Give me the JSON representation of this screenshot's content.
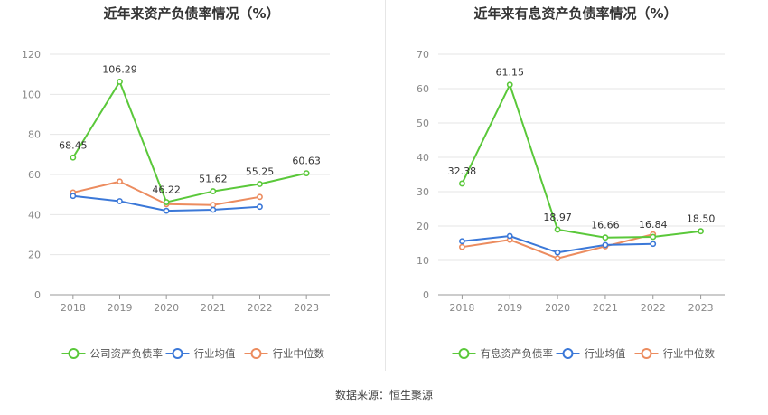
{
  "source_label": "数据来源：恒生聚源",
  "colors": {
    "company": "#5ac83a",
    "avg": "#3b78d8",
    "median": "#ec8c5f",
    "axis": "#666666",
    "grid": "#e6e6e6",
    "label": "#333333"
  },
  "chart_data": [
    {
      "type": "line",
      "title": "近年来资产负债率情况（%）",
      "categories": [
        "2018",
        "2019",
        "2020",
        "2021",
        "2022",
        "2023"
      ],
      "ylim": [
        0,
        120
      ],
      "yticks": [
        0,
        20,
        40,
        60,
        80,
        100,
        120
      ],
      "grid": true,
      "legend_position": "bottom",
      "series": [
        {
          "name": "公司资产负债率",
          "role": "company",
          "values": [
            68.45,
            106.29,
            46.22,
            51.62,
            55.25,
            60.63
          ],
          "labels": [
            "68.45",
            "106.29",
            "46.22",
            "51.62",
            "55.25",
            "60.63"
          ]
        },
        {
          "name": "行业均值",
          "role": "avg",
          "values": [
            49.3,
            46.7,
            41.9,
            42.4,
            43.9,
            null
          ]
        },
        {
          "name": "行业中位数",
          "role": "median",
          "values": [
            51.0,
            56.5,
            45.2,
            44.8,
            48.8,
            null
          ]
        }
      ]
    },
    {
      "type": "line",
      "title": "近年来有息资产负债率情况（%）",
      "categories": [
        "2018",
        "2019",
        "2020",
        "2021",
        "2022",
        "2023"
      ],
      "ylim": [
        0,
        70
      ],
      "yticks": [
        0,
        10,
        20,
        30,
        40,
        50,
        60,
        70
      ],
      "grid": true,
      "legend_position": "bottom",
      "series": [
        {
          "name": "有息资产负债率",
          "role": "company",
          "values": [
            32.38,
            61.15,
            18.97,
            16.66,
            16.84,
            18.5
          ],
          "labels": [
            "32.38",
            "61.15",
            "18.97",
            "16.66",
            "16.84",
            "18.50"
          ]
        },
        {
          "name": "行业均值",
          "role": "avg",
          "values": [
            15.6,
            17.1,
            12.3,
            14.5,
            14.8,
            null
          ]
        },
        {
          "name": "行业中位数",
          "role": "median",
          "values": [
            13.9,
            16.0,
            10.6,
            14.1,
            17.6,
            null
          ]
        }
      ]
    }
  ]
}
